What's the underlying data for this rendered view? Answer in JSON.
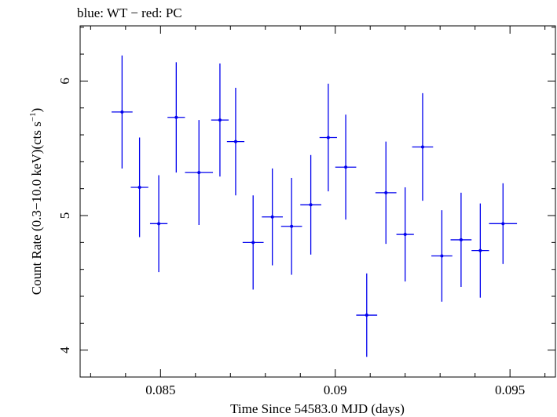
{
  "chart_data": {
    "type": "scatter",
    "title": "blue: WT − red: PC",
    "xlabel": "Time Since 54583.0 MJD (days)",
    "ylabel": "Count Rate (0.3−10.0 keV)(cts s",
    "ylabel_sup": "−1",
    "ylabel_close": ")",
    "xlim": [
      0.0827,
      0.0963
    ],
    "ylim": [
      3.8,
      6.41
    ],
    "x_ticks": [
      {
        "value": 0.085,
        "label": "0.085"
      },
      {
        "value": 0.09,
        "label": "0.09"
      },
      {
        "value": 0.095,
        "label": "0.095"
      }
    ],
    "x_minor_step": 0.001,
    "y_ticks": [
      {
        "value": 4,
        "label": "4"
      },
      {
        "value": 5,
        "label": "5"
      },
      {
        "value": 6,
        "label": "6"
      }
    ],
    "y_minor_step": 0.2,
    "grid": false,
    "colors": {
      "WT": "#0000ee",
      "PC": "#ee0000"
    },
    "series": [
      {
        "name": "WT",
        "color": "#0000ee",
        "points": [
          {
            "x": 0.0839,
            "xerr": 0.0003,
            "y": 5.77,
            "yerr": 0.42
          },
          {
            "x": 0.0844,
            "xerr": 0.00025,
            "y": 5.21,
            "yerr": 0.37
          },
          {
            "x": 0.08495,
            "xerr": 0.00025,
            "y": 4.94,
            "yerr": 0.36
          },
          {
            "x": 0.08545,
            "xerr": 0.00025,
            "y": 5.73,
            "yerr": 0.41
          },
          {
            "x": 0.0861,
            "xerr": 0.0004,
            "y": 5.32,
            "yerr": 0.39
          },
          {
            "x": 0.0867,
            "xerr": 0.00025,
            "y": 5.71,
            "yerr": 0.42
          },
          {
            "x": 0.08715,
            "xerr": 0.00025,
            "y": 5.55,
            "yerr": 0.4
          },
          {
            "x": 0.08765,
            "xerr": 0.0003,
            "y": 4.8,
            "yerr": 0.35
          },
          {
            "x": 0.0882,
            "xerr": 0.0003,
            "y": 4.99,
            "yerr": 0.36
          },
          {
            "x": 0.08875,
            "xerr": 0.0003,
            "y": 4.92,
            "yerr": 0.36
          },
          {
            "x": 0.0893,
            "xerr": 0.0003,
            "y": 5.08,
            "yerr": 0.37
          },
          {
            "x": 0.0898,
            "xerr": 0.00025,
            "y": 5.58,
            "yerr": 0.4
          },
          {
            "x": 0.0903,
            "xerr": 0.0003,
            "y": 5.36,
            "yerr": 0.39
          },
          {
            "x": 0.0909,
            "xerr": 0.0003,
            "y": 4.26,
            "yerr": 0.31
          },
          {
            "x": 0.09145,
            "xerr": 0.0003,
            "y": 5.17,
            "yerr": 0.38
          },
          {
            "x": 0.092,
            "xerr": 0.00025,
            "y": 4.86,
            "yerr": 0.35
          },
          {
            "x": 0.0925,
            "xerr": 0.0003,
            "y": 5.51,
            "yerr": 0.4
          },
          {
            "x": 0.09305,
            "xerr": 0.0003,
            "y": 4.7,
            "yerr": 0.34
          },
          {
            "x": 0.0936,
            "xerr": 0.0003,
            "y": 4.82,
            "yerr": 0.35
          },
          {
            "x": 0.09415,
            "xerr": 0.00025,
            "y": 4.74,
            "yerr": 0.35
          },
          {
            "x": 0.0948,
            "xerr": 0.0004,
            "y": 4.94,
            "yerr": 0.3
          }
        ]
      }
    ]
  }
}
